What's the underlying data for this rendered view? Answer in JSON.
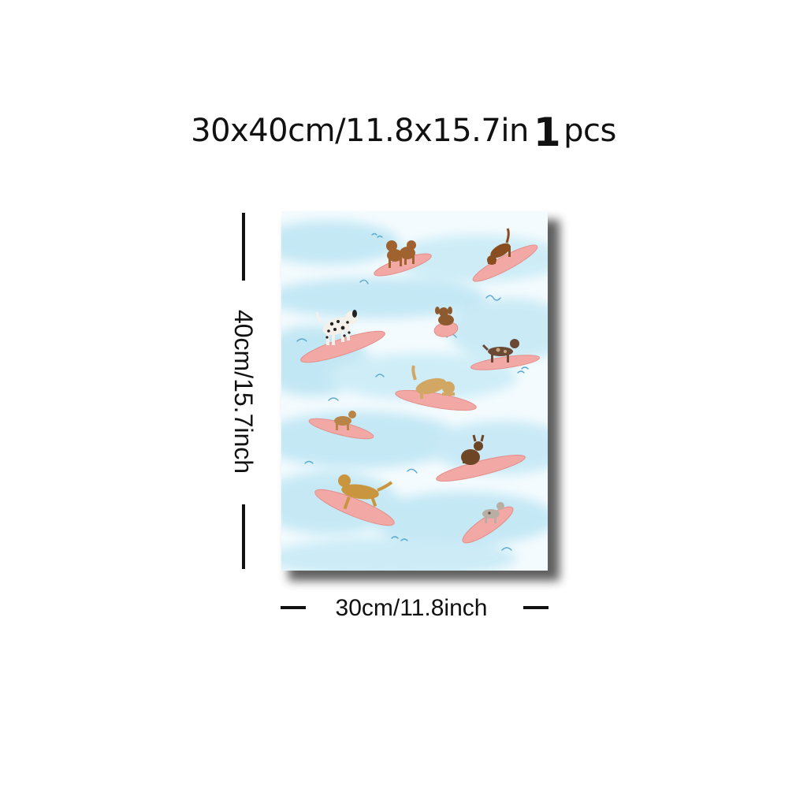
{
  "product": {
    "size_text": "30x40cm/11.8x15.7in",
    "quantity": "1",
    "quantity_unit": "pcs"
  },
  "dimensions": {
    "height_label": "40cm/15.7inch",
    "width_label": "30cm/11.8inch"
  },
  "colors": {
    "water": "#bfe6f4",
    "surfboard": "#f2a8a4",
    "text": "#111111"
  }
}
